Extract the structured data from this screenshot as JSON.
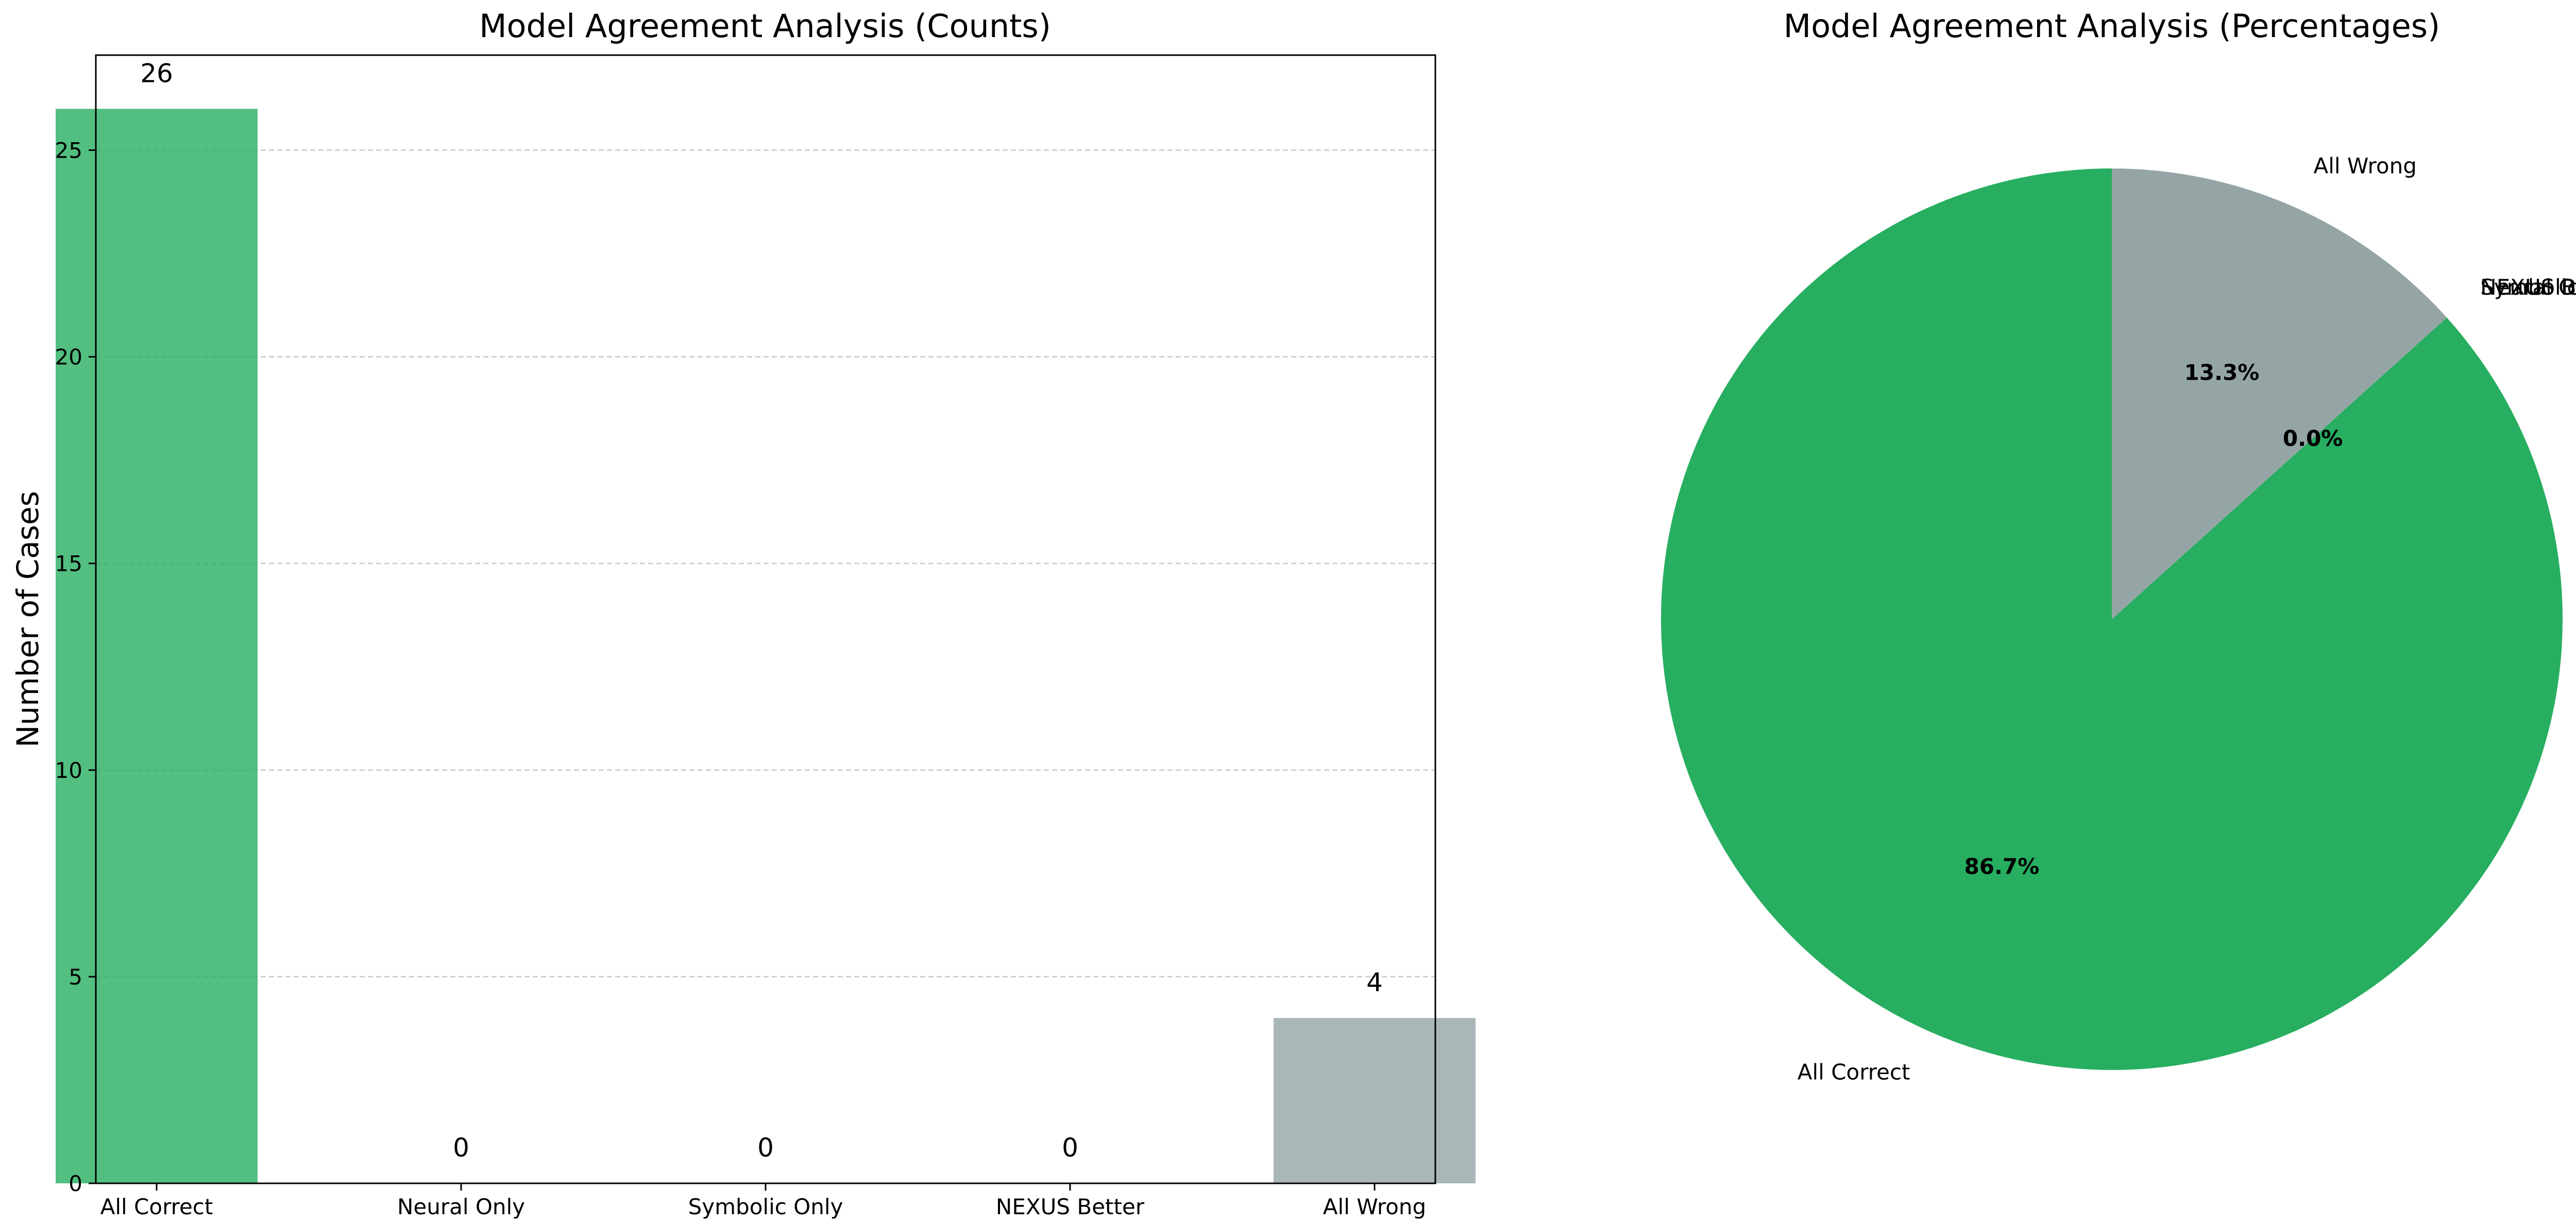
{
  "chart_data": [
    {
      "type": "bar",
      "title": "Model Agreement Analysis (Counts)",
      "xlabel": "",
      "ylabel": "Number of Cases",
      "categories": [
        "All Correct",
        "Neural Only",
        "Symbolic Only",
        "NEXUS Better",
        "All Wrong"
      ],
      "values": [
        26,
        0,
        0,
        0,
        4
      ],
      "value_labels": [
        "26",
        "0",
        "0",
        "0",
        "4"
      ],
      "colors": [
        "#27ae60",
        "#3498db",
        "#9b59b6",
        "#e67e22",
        "#95a5a6"
      ],
      "bar_opacity": 0.8,
      "ylim": [
        0,
        27.3
      ],
      "yticks": [
        0,
        5,
        10,
        15,
        20,
        25
      ],
      "ytick_labels": [
        "0",
        "5",
        "10",
        "15",
        "20",
        "25"
      ],
      "grid": "y, dashed"
    },
    {
      "type": "pie",
      "title": "Model Agreement Analysis (Percentages)",
      "labels": [
        "All Correct",
        "Neural Only",
        "Symbolic Only",
        "NEXUS Better",
        "All Wrong"
      ],
      "values": [
        26,
        0,
        0,
        0,
        4
      ],
      "percent_labels": [
        "86.7%",
        "0.0%",
        "0.0%",
        "0.0%",
        "13.3%"
      ],
      "colors": [
        "#27ae60",
        "#3498db",
        "#9b59b6",
        "#e67e22",
        "#95a5a6"
      ],
      "start_angle": 90
    }
  ]
}
